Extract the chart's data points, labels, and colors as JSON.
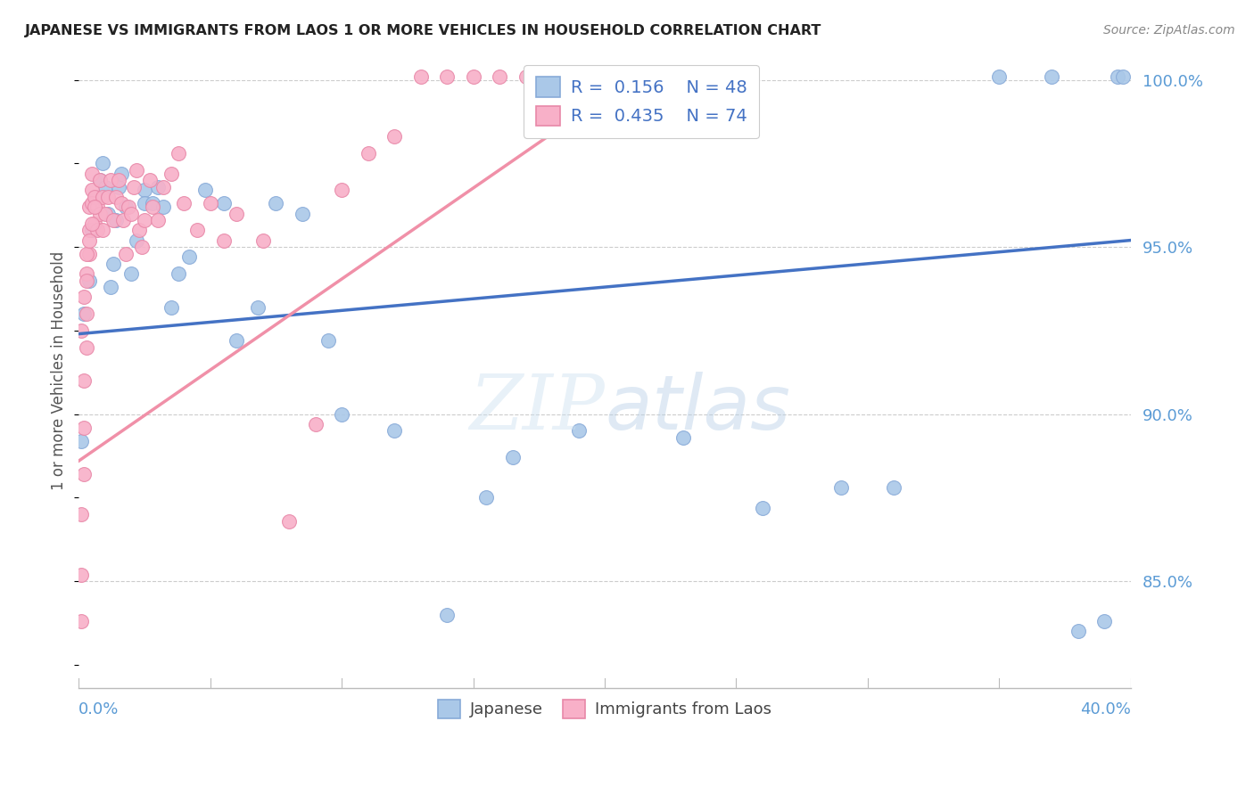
{
  "title": "JAPANESE VS IMMIGRANTS FROM LAOS 1 OR MORE VEHICLES IN HOUSEHOLD CORRELATION CHART",
  "source": "Source: ZipAtlas.com",
  "ylabel": "1 or more Vehicles in Household",
  "xmin": 0.0,
  "xmax": 0.4,
  "ymin": 0.818,
  "ymax": 1.008,
  "blue_line_x": [
    0.0,
    0.4
  ],
  "blue_line_y": [
    0.924,
    0.952
  ],
  "pink_line_x": [
    0.0,
    0.215
  ],
  "pink_line_y": [
    0.886,
    1.003
  ],
  "blue_scatter_x": [
    0.002,
    0.004,
    0.005,
    0.007,
    0.008,
    0.009,
    0.01,
    0.011,
    0.012,
    0.013,
    0.014,
    0.015,
    0.016,
    0.018,
    0.02,
    0.022,
    0.025,
    0.025,
    0.028,
    0.03,
    0.032,
    0.035,
    0.038,
    0.042,
    0.048,
    0.055,
    0.06,
    0.068,
    0.075,
    0.085,
    0.095,
    0.1,
    0.12,
    0.14,
    0.155,
    0.165,
    0.19,
    0.23,
    0.26,
    0.29,
    0.31,
    0.35,
    0.37,
    0.38,
    0.39,
    0.395,
    0.397,
    0.001
  ],
  "blue_scatter_y": [
    0.93,
    0.94,
    0.955,
    0.965,
    0.97,
    0.975,
    0.968,
    0.96,
    0.938,
    0.945,
    0.958,
    0.968,
    0.972,
    0.962,
    0.942,
    0.952,
    0.967,
    0.963,
    0.963,
    0.968,
    0.962,
    0.932,
    0.942,
    0.947,
    0.967,
    0.963,
    0.922,
    0.932,
    0.963,
    0.96,
    0.922,
    0.9,
    0.895,
    0.84,
    0.875,
    0.887,
    0.895,
    0.893,
    0.872,
    0.878,
    0.878,
    1.001,
    1.001,
    0.835,
    0.838,
    1.001,
    1.001,
    0.892
  ],
  "pink_scatter_x": [
    0.001,
    0.001,
    0.001,
    0.002,
    0.002,
    0.002,
    0.003,
    0.003,
    0.003,
    0.004,
    0.004,
    0.004,
    0.005,
    0.005,
    0.005,
    0.006,
    0.006,
    0.007,
    0.007,
    0.008,
    0.008,
    0.009,
    0.009,
    0.01,
    0.011,
    0.012,
    0.013,
    0.014,
    0.015,
    0.016,
    0.017,
    0.018,
    0.019,
    0.02,
    0.021,
    0.022,
    0.023,
    0.024,
    0.025,
    0.027,
    0.028,
    0.03,
    0.032,
    0.035,
    0.038,
    0.04,
    0.045,
    0.05,
    0.055,
    0.06,
    0.07,
    0.08,
    0.09,
    0.1,
    0.11,
    0.12,
    0.13,
    0.14,
    0.15,
    0.16,
    0.17,
    0.18,
    0.19,
    0.2,
    0.205,
    0.21,
    0.215,
    0.001,
    0.002,
    0.003,
    0.003,
    0.004,
    0.005,
    0.006
  ],
  "pink_scatter_y": [
    0.838,
    0.852,
    0.87,
    0.882,
    0.896,
    0.91,
    0.92,
    0.93,
    0.942,
    0.948,
    0.955,
    0.962,
    0.967,
    0.972,
    0.963,
    0.957,
    0.965,
    0.962,
    0.955,
    0.96,
    0.97,
    0.965,
    0.955,
    0.96,
    0.965,
    0.97,
    0.958,
    0.965,
    0.97,
    0.963,
    0.958,
    0.948,
    0.962,
    0.96,
    0.968,
    0.973,
    0.955,
    0.95,
    0.958,
    0.97,
    0.962,
    0.958,
    0.968,
    0.972,
    0.978,
    0.963,
    0.955,
    0.963,
    0.952,
    0.96,
    0.952,
    0.868,
    0.897,
    0.967,
    0.978,
    0.983,
    1.001,
    1.001,
    1.001,
    1.001,
    1.001,
    1.001,
    1.001,
    1.001,
    1.001,
    1.001,
    1.001,
    0.925,
    0.935,
    0.94,
    0.948,
    0.952,
    0.957,
    0.962
  ]
}
